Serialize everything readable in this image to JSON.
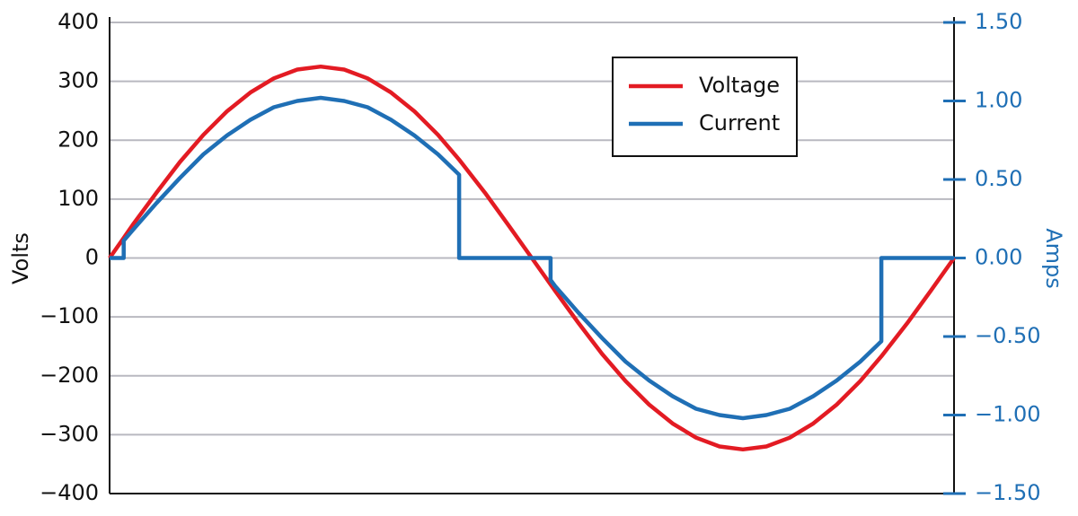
{
  "chart_data": {
    "type": "line",
    "y_label": "Volts",
    "y2_label": "Amps",
    "x": [
      0,
      6,
      6,
      10,
      20,
      30,
      40,
      50,
      60,
      70,
      80,
      90,
      100,
      110,
      120,
      130,
      140,
      149,
      149,
      160,
      170,
      180,
      188,
      188,
      190,
      200,
      210,
      220,
      230,
      240,
      250,
      260,
      270,
      280,
      290,
      300,
      310,
      320,
      329,
      329,
      340,
      350,
      360
    ],
    "xlim": [
      0,
      360
    ],
    "ylim": [
      -400,
      400
    ],
    "yticks": [
      {
        "value": -400,
        "label": "−400"
      },
      {
        "value": -300,
        "label": "−300"
      },
      {
        "value": -200,
        "label": "−200"
      },
      {
        "value": -100,
        "label": "−100"
      },
      0,
      100,
      200,
      300,
      400
    ],
    "y2lim": [
      -1.5,
      1.5
    ],
    "y2ticks": [
      {
        "value": -1.5,
        "label": "−1.50"
      },
      {
        "value": -1,
        "label": "−1.00"
      },
      {
        "value": -0.5,
        "label": "−0.50"
      },
      {
        "value": 0,
        "label": "0.00"
      },
      {
        "value": 0.5,
        "label": "0.50"
      },
      {
        "value": 1,
        "label": "1.00"
      },
      {
        "value": 1.5,
        "label": "1.50"
      }
    ],
    "y2_color": "#1f6fb5",
    "grid": true,
    "legend": "top-right",
    "series": [
      {
        "name": "Voltage",
        "color": "#e31b23",
        "values": [
          0,
          34,
          34,
          57,
          111,
          163,
          209,
          249,
          281,
          305,
          320,
          325,
          320,
          305,
          281,
          249,
          209,
          167,
          167,
          111,
          56,
          0,
          -45,
          -45,
          -56,
          -111,
          -163,
          -209,
          -249,
          -281,
          -305,
          -320,
          -325,
          -320,
          -305,
          -281,
          -249,
          -209,
          -167,
          -167,
          -111,
          -56,
          0
        ]
      },
      {
        "name": "Current",
        "color": "#1f6fb5",
        "axis": "y2",
        "values": [
          0,
          0,
          0.11,
          0.18,
          0.35,
          0.51,
          0.66,
          0.78,
          0.88,
          0.96,
          1.0,
          1.02,
          1.0,
          0.96,
          0.88,
          0.78,
          0.66,
          0.53,
          0,
          0,
          0,
          0,
          0,
          -0.14,
          -0.18,
          -0.35,
          -0.51,
          -0.66,
          -0.78,
          -0.88,
          -0.96,
          -1.0,
          -1.02,
          -1.0,
          -0.96,
          -0.88,
          -0.78,
          -0.66,
          -0.53,
          0,
          0,
          0,
          0
        ]
      }
    ]
  }
}
